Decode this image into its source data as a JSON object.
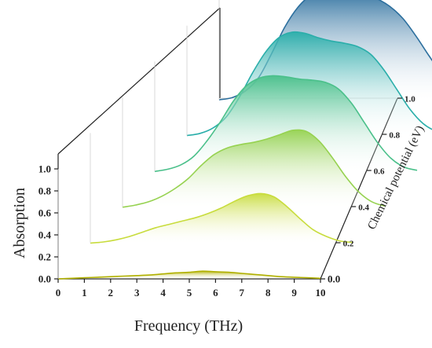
{
  "chart_data": {
    "type": "line",
    "subtype": "3d-waterfall",
    "xlabel": "Frequency (THz)",
    "ylabel": "Absorption",
    "zlabel": "Chemical potential (eV)",
    "xlim": [
      0,
      10
    ],
    "ylim": [
      0,
      1.0
    ],
    "zlim": [
      0,
      1.0
    ],
    "x_ticks": [
      "0",
      "1",
      "2",
      "3",
      "4",
      "5",
      "6",
      "7",
      "8",
      "9",
      "10"
    ],
    "y_ticks": [
      "0.0",
      "0.2",
      "0.4",
      "0.6",
      "0.8",
      "1.0"
    ],
    "z_ticks": [
      "0.0",
      "0.2",
      "0.4",
      "0.6",
      "0.8",
      "1.0"
    ],
    "grid": false,
    "x": [
      0,
      0.5,
      1,
      1.5,
      2,
      2.5,
      3,
      3.5,
      4,
      4.5,
      5,
      5.5,
      6,
      6.5,
      7,
      7.5,
      8,
      8.5,
      9,
      9.5,
      10
    ],
    "series": [
      {
        "z": 0.0,
        "color": "#b0b000",
        "values": [
          0.0,
          0.005,
          0.01,
          0.015,
          0.02,
          0.025,
          0.03,
          0.035,
          0.045,
          0.055,
          0.06,
          0.07,
          0.065,
          0.06,
          0.05,
          0.04,
          0.03,
          0.02,
          0.015,
          0.01,
          0.005
        ]
      },
      {
        "z": 0.2,
        "color": "#c8dc3c",
        "values": [
          0.0,
          0.01,
          0.03,
          0.06,
          0.1,
          0.14,
          0.17,
          0.2,
          0.23,
          0.27,
          0.32,
          0.38,
          0.43,
          0.45,
          0.42,
          0.33,
          0.22,
          0.12,
          0.06,
          0.02,
          0.005
        ]
      },
      {
        "z": 0.4,
        "color": "#96d250",
        "values": [
          0.0,
          0.02,
          0.05,
          0.1,
          0.17,
          0.26,
          0.38,
          0.48,
          0.54,
          0.57,
          0.59,
          0.62,
          0.66,
          0.7,
          0.69,
          0.6,
          0.45,
          0.28,
          0.14,
          0.05,
          0.01
        ]
      },
      {
        "z": 0.6,
        "color": "#4ac08a",
        "values": [
          0.0,
          0.02,
          0.06,
          0.14,
          0.28,
          0.45,
          0.64,
          0.78,
          0.85,
          0.87,
          0.86,
          0.84,
          0.83,
          0.81,
          0.75,
          0.62,
          0.44,
          0.26,
          0.12,
          0.04,
          0.01
        ]
      },
      {
        "z": 0.8,
        "color": "#2aaeaa",
        "values": [
          0.0,
          0.02,
          0.07,
          0.17,
          0.35,
          0.57,
          0.76,
          0.89,
          0.94,
          0.93,
          0.89,
          0.86,
          0.84,
          0.81,
          0.74,
          0.6,
          0.42,
          0.24,
          0.11,
          0.04,
          0.01
        ]
      },
      {
        "z": 1.0,
        "color": "#2c6f9e",
        "values": [
          0.0,
          0.02,
          0.08,
          0.2,
          0.42,
          0.66,
          0.84,
          0.95,
          0.98,
          0.98,
          0.98,
          0.96,
          0.92,
          0.85,
          0.74,
          0.58,
          0.4,
          0.23,
          0.1,
          0.03,
          0.01
        ]
      }
    ]
  }
}
